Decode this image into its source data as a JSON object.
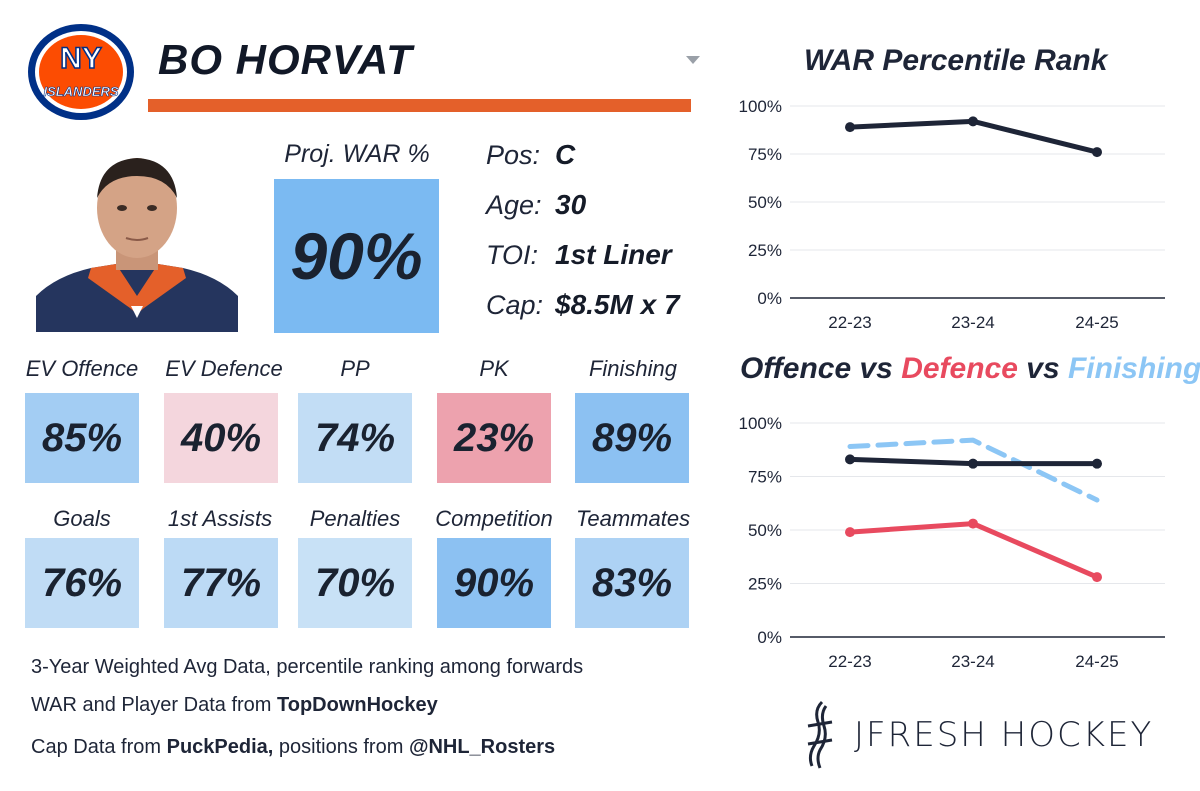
{
  "team": {
    "logo_text": "NY",
    "logo_subtext": "ISLANDERS",
    "logo_colors": {
      "ring": "#003087",
      "fill": "#fc4c02"
    }
  },
  "player": {
    "name": "BO HORVAT"
  },
  "projection": {
    "label": "Proj. WAR %",
    "value": "90%",
    "color": "#7bbaf2"
  },
  "info": [
    {
      "label": "Pos:",
      "value": "C"
    },
    {
      "label": "Age:",
      "value": "30"
    },
    {
      "label": "TOI:",
      "value": "1st Liner"
    },
    {
      "label": "Cap:",
      "value": "$8.5M x 7"
    }
  ],
  "stats_row1": [
    {
      "label": "EV Offence",
      "value": "85%",
      "color": "#a3cdf3"
    },
    {
      "label": "EV Defence",
      "value": "40%",
      "color": "#f4d6dd"
    },
    {
      "label": "PP",
      "value": "74%",
      "color": "#c2ddf5"
    },
    {
      "label": "PK",
      "value": "23%",
      "color": "#eda2ae"
    },
    {
      "label": "Finishing",
      "value": "89%",
      "color": "#8cc1f2"
    }
  ],
  "stats_row2": [
    {
      "label": "Goals",
      "value": "76%",
      "color": "#c0dcf5"
    },
    {
      "label": "1st Assists",
      "value": "77%",
      "color": "#bcdaf5"
    },
    {
      "label": "Penalties",
      "value": "70%",
      "color": "#c8e1f6"
    },
    {
      "label": "Competition",
      "value": "90%",
      "color": "#8cc1f2"
    },
    {
      "label": "Teammates",
      "value": "83%",
      "color": "#add2f4"
    }
  ],
  "notes": {
    "line1": "3-Year Weighted Avg Data, percentile ranking among forwards",
    "line2_prefix": "WAR and Player Data from ",
    "line2_bold": "TopDownHockey",
    "line3_prefix": "Cap Data from ",
    "line3_bold1": "PuckPedia,",
    "line3_mid": " positions from ",
    "line3_bold2": "@NHL_Rosters"
  },
  "chart_data": [
    {
      "type": "line",
      "title": "WAR Percentile Rank",
      "categories": [
        "22-23",
        "23-24",
        "24-25"
      ],
      "yticks": [
        "0%",
        "25%",
        "50%",
        "75%",
        "100%"
      ],
      "ylim": [
        0,
        100
      ],
      "series": [
        {
          "name": "WAR",
          "values": [
            89,
            92,
            76
          ],
          "color": "#1e2537",
          "dashed": false
        }
      ]
    },
    {
      "type": "line",
      "title_parts": [
        {
          "text": "Offence",
          "color": "#1e2537"
        },
        {
          "text": " vs ",
          "color": "#1e2537"
        },
        {
          "text": "Defence",
          "color": "#e84a5f"
        },
        {
          "text": " vs ",
          "color": "#1e2537"
        },
        {
          "text": "Finishing",
          "color": "#8cc6f5"
        }
      ],
      "categories": [
        "22-23",
        "23-24",
        "24-25"
      ],
      "yticks": [
        "0%",
        "25%",
        "50%",
        "75%",
        "100%"
      ],
      "ylim": [
        0,
        100
      ],
      "series": [
        {
          "name": "Finishing",
          "values": [
            89,
            92,
            64
          ],
          "color": "#8cc6f5",
          "dashed": true
        },
        {
          "name": "Offence",
          "values": [
            83,
            81,
            81
          ],
          "color": "#1e2537",
          "dashed": false
        },
        {
          "name": "Defence",
          "values": [
            49,
            53,
            28
          ],
          "color": "#e84a5f",
          "dashed": false
        }
      ]
    }
  ],
  "brand": {
    "text": "JFRESH HOCKEY"
  }
}
